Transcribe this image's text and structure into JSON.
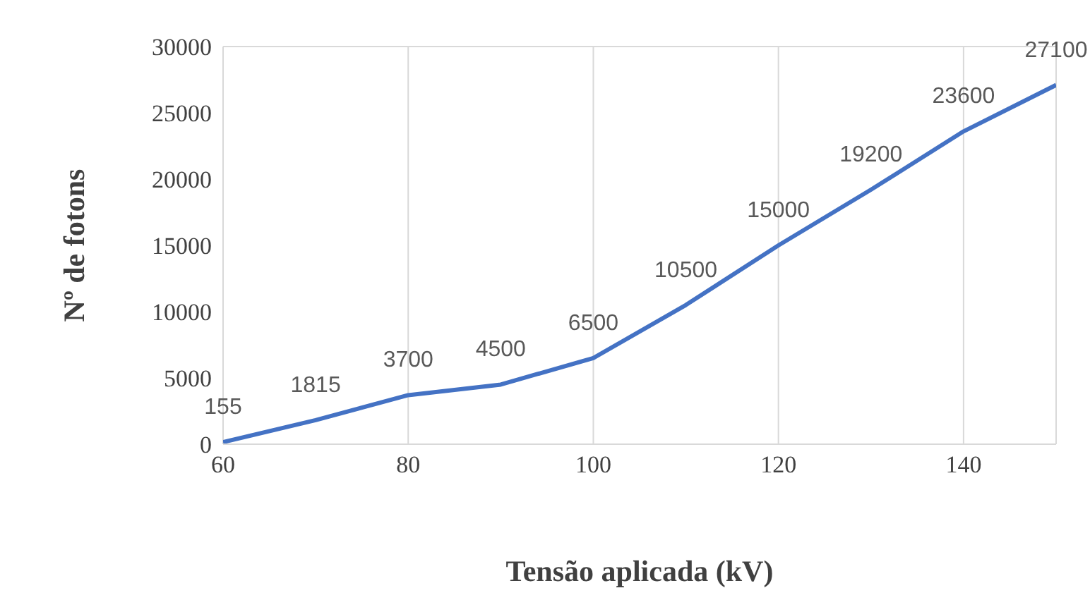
{
  "chart_data": {
    "type": "line",
    "xlabel": "Tensão aplicada (kV)",
    "ylabel": "Nº de fotons",
    "x": [
      60,
      70,
      80,
      90,
      100,
      110,
      120,
      130,
      140,
      150
    ],
    "series": [
      {
        "color": "#4472c4",
        "values": [
          155,
          1815,
          3700,
          4500,
          6500,
          10500,
          15000,
          19200,
          23600,
          27100
        ]
      }
    ],
    "xlim": [
      60,
      150
    ],
    "xticks": [
      60,
      80,
      100,
      120,
      140
    ],
    "ylim": [
      0,
      30000
    ],
    "yticks": [
      0,
      5000,
      10000,
      15000,
      20000,
      25000,
      30000
    ],
    "grid": true,
    "data_labels": true,
    "marker": "none",
    "line_style": "solid",
    "legend": false
  }
}
